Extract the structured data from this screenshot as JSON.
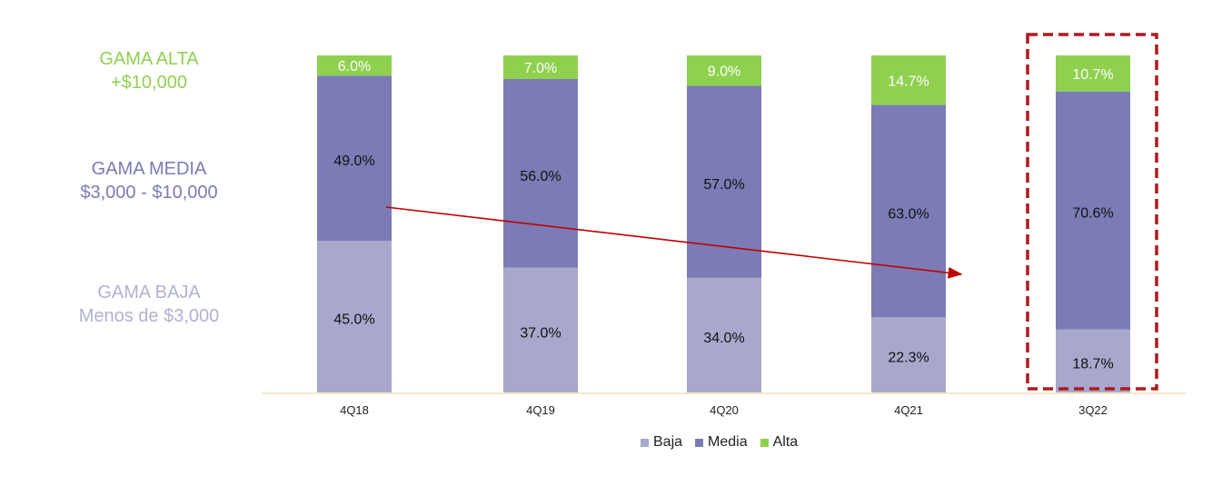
{
  "side_labels": {
    "alta": {
      "title": "GAMA ALTA",
      "range": "+$10,000",
      "color": "#8fd14f"
    },
    "media": {
      "title": "GAMA MEDIA",
      "range": "$3,000 - $10,000",
      "color": "#7b7bb5"
    },
    "baja": {
      "title": "GAMA BAJA",
      "range": "Menos de $3,000",
      "color": "#b2b2d3"
    }
  },
  "colors": {
    "baja": "#a7a8cc",
    "media": "#7b7bb5",
    "alta": "#8fd14f",
    "highlight_box": "#b0191e",
    "trend_arrow": "#c00000",
    "baseline": "#f3dfb4"
  },
  "chart_data": {
    "type": "bar",
    "stacked": true,
    "percent_stacked": true,
    "categories": [
      "4Q18",
      "4Q19",
      "4Q20",
      "4Q21",
      "3Q22"
    ],
    "series": [
      {
        "name": "Baja",
        "values": [
          45.0,
          37.0,
          34.0,
          22.3,
          18.7
        ],
        "labels": [
          "45.0%",
          "37.0%",
          "34.0%",
          "22.3%",
          "18.7%"
        ]
      },
      {
        "name": "Media",
        "values": [
          49.0,
          56.0,
          57.0,
          63.0,
          70.6
        ],
        "labels": [
          "49.0%",
          "56.0%",
          "57.0%",
          "63.0%",
          "70.6%"
        ]
      },
      {
        "name": "Alta",
        "values": [
          6.0,
          7.0,
          9.0,
          14.7,
          10.7
        ],
        "labels": [
          "6.0%",
          "7.0%",
          "9.0%",
          "14.7%",
          "10.7%"
        ]
      }
    ],
    "highlighted_category": "3Q22",
    "legend_position": "bottom",
    "grid": false
  }
}
